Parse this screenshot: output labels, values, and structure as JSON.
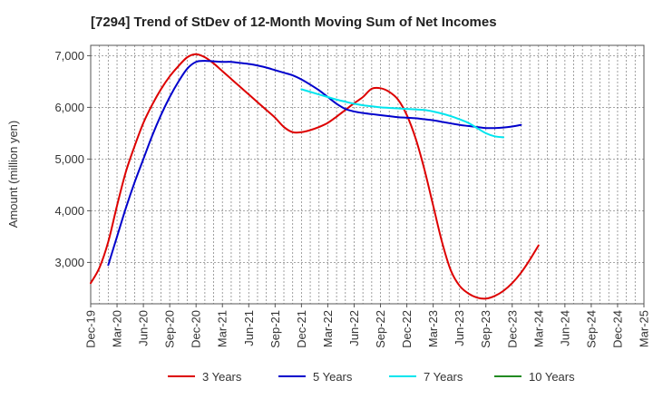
{
  "chart_data": {
    "type": "line",
    "title": "[7294]  Trend of StDev of 12-Month Moving Sum of Net Incomes",
    "xlabel": "",
    "ylabel": "Amount (million yen)",
    "ylim": [
      2200,
      7200
    ],
    "y_ticks": [
      3000,
      4000,
      5000,
      6000,
      7000
    ],
    "y_tick_labels": [
      "3,000",
      "4,000",
      "5,000",
      "6,000",
      "7,000"
    ],
    "x_tick_labels": [
      "Dec-19",
      "Mar-20",
      "Jun-20",
      "Sep-20",
      "Dec-20",
      "Mar-21",
      "Jun-21",
      "Sep-21",
      "Dec-21",
      "Mar-22",
      "Jun-22",
      "Sep-22",
      "Dec-22",
      "Mar-23",
      "Jun-23",
      "Sep-23",
      "Dec-23",
      "Mar-24",
      "Jun-24",
      "Sep-24",
      "Dec-24",
      "Mar-25"
    ],
    "grid": true,
    "legend_position": "bottom",
    "series": [
      {
        "name": "3 Years",
        "color": "#dd0000",
        "start_index": 0,
        "values": [
          2600,
          2900,
          3400,
          4100,
          4750,
          5250,
          5700,
          6050,
          6350,
          6600,
          6800,
          6970,
          7030,
          6970,
          6850,
          6700,
          6550,
          6400,
          6250,
          6100,
          5950,
          5800,
          5620,
          5520,
          5520,
          5560,
          5620,
          5700,
          5820,
          5950,
          6080,
          6200,
          6360,
          6370,
          6300,
          6150,
          5850,
          5400,
          4800,
          4100,
          3400,
          2850,
          2550,
          2400,
          2320,
          2300,
          2350,
          2450,
          2600,
          2800,
          3050,
          3330
        ]
      },
      {
        "name": "5 Years",
        "color": "#0000cc",
        "start_index": 2,
        "values": [
          2950,
          3500,
          4050,
          4550,
          5000,
          5450,
          5850,
          6200,
          6500,
          6750,
          6880,
          6900,
          6890,
          6880,
          6880,
          6860,
          6840,
          6810,
          6770,
          6720,
          6670,
          6620,
          6540,
          6440,
          6330,
          6200,
          6070,
          5970,
          5920,
          5890,
          5870,
          5850,
          5830,
          5810,
          5800,
          5790,
          5770,
          5750,
          5720,
          5690,
          5660,
          5640,
          5620,
          5600,
          5600,
          5610,
          5630,
          5660
        ]
      },
      {
        "name": "7 Years",
        "color": "#00e5ee",
        "start_index": 24,
        "values": [
          6350,
          6300,
          6250,
          6200,
          6150,
          6110,
          6070,
          6040,
          6020,
          6000,
          5990,
          5980,
          5970,
          5960,
          5950,
          5920,
          5880,
          5830,
          5770,
          5700,
          5600,
          5500,
          5440,
          5420
        ]
      },
      {
        "name": "10 Years",
        "color": "#228b22",
        "start_index": 0,
        "values": []
      }
    ]
  }
}
